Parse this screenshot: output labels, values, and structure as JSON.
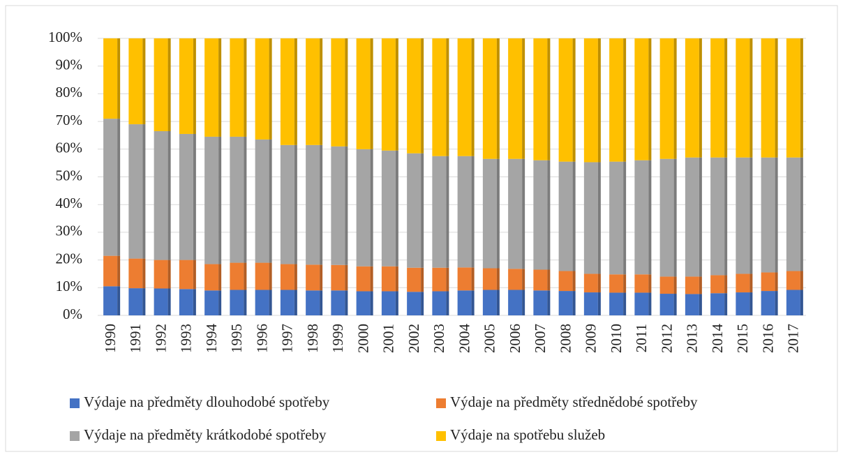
{
  "chart_data": {
    "type": "stacked_bar_100",
    "categories": [
      "1990",
      "1991",
      "1992",
      "1993",
      "1994",
      "1995",
      "1996",
      "1997",
      "1998",
      "1999",
      "2000",
      "2001",
      "2002",
      "2003",
      "2004",
      "2005",
      "2006",
      "2007",
      "2008",
      "2009",
      "2010",
      "2011",
      "2012",
      "2013",
      "2014",
      "2015",
      "2016",
      "2017"
    ],
    "series": [
      {
        "name": "Výdaje na předměty dlouhodobé spotřeby",
        "color": "#4472c4",
        "values": [
          10.5,
          9.8,
          9.7,
          9.5,
          9,
          9.2,
          9.2,
          9.2,
          9,
          9,
          8.7,
          8.7,
          8.5,
          8.7,
          9,
          9.2,
          9.2,
          9,
          8.8,
          8.3,
          8.2,
          8.2,
          7.8,
          7.7,
          8,
          8.3,
          8.8,
          9.2
        ]
      },
      {
        "name": "Výdaje na předměty střednědobé spotřeby",
        "color": "#ed7d31",
        "values": [
          11,
          10.7,
          10.3,
          10.5,
          9.5,
          9.8,
          9.8,
          9.3,
          9.3,
          9.2,
          9,
          9,
          8.7,
          8.5,
          8.3,
          7.8,
          7.6,
          7.5,
          7.2,
          6.7,
          6.6,
          6.6,
          6.2,
          6.3,
          6.5,
          6.7,
          6.7,
          6.8
        ]
      },
      {
        "name": "Výdaje na předměty krátkodobé spotřeby",
        "color": "#a5a5a5",
        "values": [
          49.5,
          48.5,
          46.5,
          45.5,
          46,
          45.5,
          44.5,
          43,
          43.2,
          42.8,
          42.3,
          41.8,
          41.3,
          40.3,
          40.2,
          39.5,
          39.7,
          39.5,
          39.5,
          40.3,
          40.7,
          41.2,
          42.5,
          43,
          42.5,
          42,
          41.5,
          41
        ]
      },
      {
        "name": "Výdaje na spotřebu služeb",
        "color": "#ffc000",
        "values": [
          29,
          31,
          33.5,
          34.5,
          35.5,
          35.5,
          36.5,
          38.5,
          38.5,
          39,
          40,
          40.5,
          41.5,
          42.5,
          42.5,
          43.5,
          43.5,
          44,
          44.5,
          44.7,
          44.5,
          44,
          43.5,
          43,
          43,
          43,
          43,
          43
        ]
      }
    ],
    "ylim": [
      0,
      100
    ],
    "yticks": [
      {
        "value": 0,
        "label": "0%"
      },
      {
        "value": 10,
        "label": "10%"
      },
      {
        "value": 20,
        "label": "20%"
      },
      {
        "value": 30,
        "label": "30%"
      },
      {
        "value": 40,
        "label": "40%"
      },
      {
        "value": 50,
        "label": "50%"
      },
      {
        "value": 60,
        "label": "60%"
      },
      {
        "value": 70,
        "label": "70%"
      },
      {
        "value": 80,
        "label": "80%"
      },
      {
        "value": 90,
        "label": "90%"
      },
      {
        "value": 100,
        "label": "100%"
      }
    ],
    "grid": true,
    "legend": "bottom"
  }
}
